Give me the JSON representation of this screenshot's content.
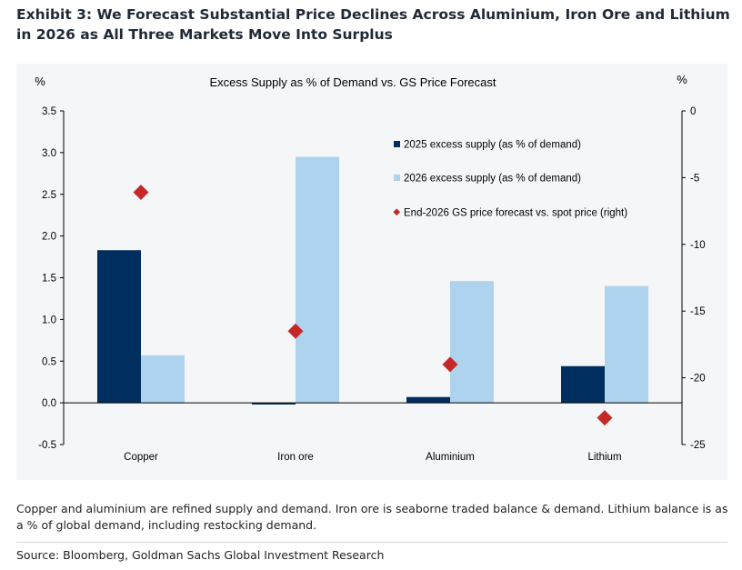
{
  "exhibit": {
    "title": "Exhibit 3: We Forecast Substantial Price Declines Across Aluminium, Iron Ore and Lithium in 2026 as All Three Markets Move Into Surplus"
  },
  "chart_data": {
    "type": "bar",
    "title": "Excess Supply as % of Demand vs. GS Price Forecast",
    "left_unit": "%",
    "right_unit": "%",
    "categories": [
      "Copper",
      "Iron ore",
      "Aluminium",
      "Lithium"
    ],
    "ylim_left": [
      -0.5,
      3.5
    ],
    "ylim_right": [
      -25,
      0
    ],
    "left_ticks": [
      "3.5",
      "3.0",
      "2.5",
      "2.0",
      "1.5",
      "1.0",
      "0.5",
      "0.0",
      "-0.5"
    ],
    "left_tick_values": [
      3.5,
      3.0,
      2.5,
      2.0,
      1.5,
      1.0,
      0.5,
      0.0,
      -0.5
    ],
    "right_ticks": [
      "0",
      "-5",
      "-10",
      "-15",
      "-20",
      "-25"
    ],
    "right_tick_values": [
      0,
      -5,
      -10,
      -15,
      -20,
      -25
    ],
    "series": [
      {
        "name": "2025 excess supply (as % of demand)",
        "axis": "left",
        "kind": "bar",
        "color": "#002f5f",
        "values": [
          1.83,
          -0.02,
          0.07,
          0.44
        ]
      },
      {
        "name": "2026 excess supply (as % of demand)",
        "axis": "left",
        "kind": "bar",
        "color": "#aed3ee",
        "values": [
          0.57,
          2.95,
          1.46,
          1.4
        ]
      },
      {
        "name": "End-2026 GS price forecast vs. spot price (right)",
        "axis": "right",
        "kind": "marker",
        "color": "#c62828",
        "values": [
          -6.1,
          -16.5,
          -19.0,
          -23.0
        ]
      }
    ],
    "legend_position": "upper-right"
  },
  "footer": {
    "note": "Copper and aluminium are refined supply and demand. Iron ore is seaborne traded balance & demand. Lithium balance is as a % of global demand, including restocking demand.",
    "source": "Source: Bloomberg, Goldman Sachs Global Investment Research"
  }
}
